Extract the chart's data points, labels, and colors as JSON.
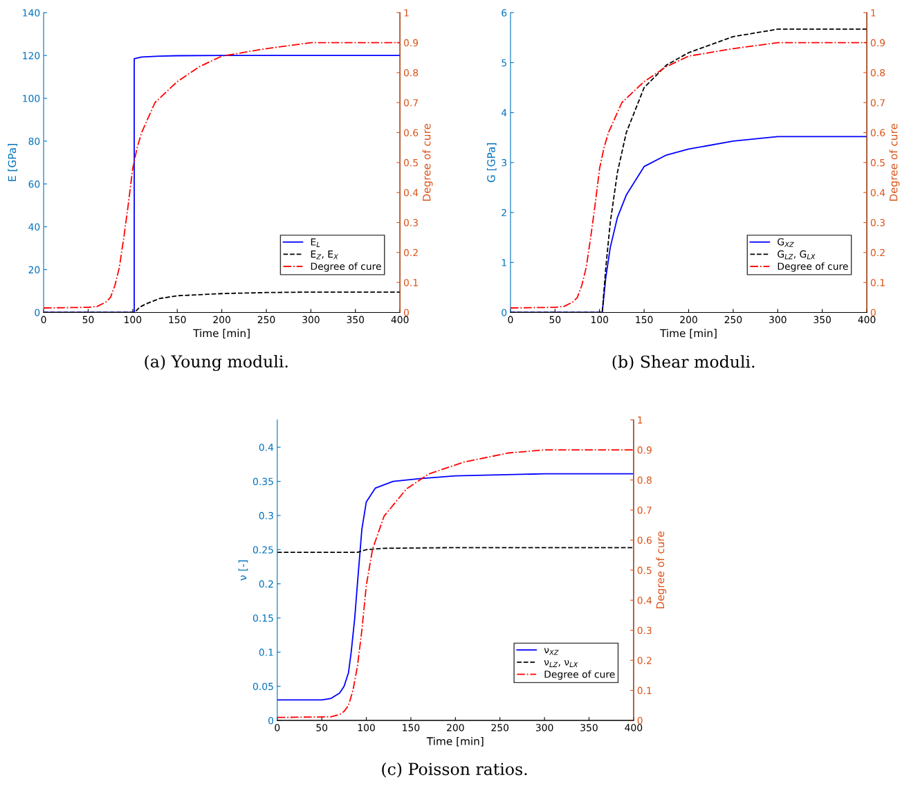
{
  "chart_data": [
    {
      "type": "line",
      "xlabel": "Time [min]",
      "ylabel": "E [GPa]",
      "y2label": "Degree of cure",
      "xlim": [
        0,
        400
      ],
      "xticks": [
        0,
        50,
        100,
        150,
        200,
        250,
        300,
        350,
        400
      ],
      "ylim": [
        0,
        140
      ],
      "yticks": [
        0,
        20,
        40,
        60,
        80,
        100,
        120,
        140
      ],
      "y2lim": [
        0,
        1
      ],
      "y2ticks": [
        0,
        0.1,
        0.2,
        0.3,
        0.4,
        0.5,
        0.6,
        0.7,
        0.8,
        0.9,
        1
      ],
      "legend": "bottom right",
      "grid": false,
      "annotations": [
        "(a) Young moduli."
      ],
      "series": [
        {
          "name": "E$_{L}$",
          "color": "#0000ff",
          "line_style": "solid",
          "x": [
            0,
            101.7,
            101.7,
            110,
            130,
            150,
            200,
            400
          ],
          "values": [
            0,
            0,
            118.5,
            119.3,
            119.7,
            119.9,
            120,
            120
          ]
        },
        {
          "name": "E$_{Z}$, E$_{X}$",
          "color": "#000000",
          "line_style": "dashed",
          "x": [
            0,
            102,
            108,
            115,
            130,
            150,
            200,
            250,
            300,
            400
          ],
          "values": [
            0,
            0,
            2.5,
            4,
            6.5,
            7.8,
            8.8,
            9.3,
            9.5,
            9.5
          ]
        },
        {
          "name": "Degree of cure",
          "color": "#ff0000",
          "line_style": "dashdot",
          "axis": "y2",
          "x": [
            0,
            50,
            60,
            70,
            75,
            80,
            85,
            90,
            95,
            100,
            105,
            110,
            125,
            150,
            175,
            200,
            250,
            300,
            400
          ],
          "values": [
            0.015,
            0.017,
            0.02,
            0.035,
            0.05,
            0.09,
            0.15,
            0.25,
            0.36,
            0.48,
            0.55,
            0.6,
            0.7,
            0.77,
            0.82,
            0.855,
            0.88,
            0.9,
            0.9
          ]
        }
      ]
    },
    {
      "type": "line",
      "xlabel": "Time [min]",
      "ylabel": "G [GPa]",
      "y2label": "Degree of cure",
      "xlim": [
        0,
        400
      ],
      "xticks": [
        0,
        50,
        100,
        150,
        200,
        250,
        300,
        350,
        400
      ],
      "ylim": [
        0,
        6
      ],
      "yticks": [
        0,
        1,
        2,
        3,
        4,
        5,
        6
      ],
      "y2lim": [
        0,
        1
      ],
      "y2ticks": [
        0,
        0.1,
        0.2,
        0.3,
        0.4,
        0.5,
        0.6,
        0.7,
        0.8,
        0.9,
        1
      ],
      "legend": "bottom right",
      "grid": false,
      "annotations": [
        "(b) Shear moduli."
      ],
      "series": [
        {
          "name": "G$_{XZ}$",
          "color": "#0000ff",
          "line_style": "solid",
          "x": [
            0,
            103,
            107,
            112,
            120,
            130,
            150,
            175,
            200,
            250,
            300,
            400
          ],
          "values": [
            0,
            0,
            0.7,
            1.3,
            1.9,
            2.35,
            2.92,
            3.15,
            3.27,
            3.43,
            3.52,
            3.52
          ]
        },
        {
          "name": "G$_{LZ}$, G$_{LX}$",
          "color": "#000000",
          "line_style": "dashed",
          "x": [
            0,
            103,
            107,
            112,
            120,
            130,
            150,
            175,
            200,
            250,
            300,
            400
          ],
          "values": [
            0,
            0,
            0.9,
            1.8,
            2.8,
            3.6,
            4.5,
            4.95,
            5.2,
            5.52,
            5.67,
            5.67
          ]
        },
        {
          "name": "Degree of cure",
          "color": "#ff0000",
          "line_style": "dashdot",
          "axis": "y2",
          "x": [
            0,
            50,
            60,
            70,
            75,
            80,
            85,
            90,
            95,
            100,
            105,
            110,
            125,
            150,
            175,
            200,
            250,
            300,
            400
          ],
          "values": [
            0.015,
            0.017,
            0.02,
            0.035,
            0.05,
            0.09,
            0.15,
            0.25,
            0.36,
            0.48,
            0.55,
            0.6,
            0.7,
            0.77,
            0.82,
            0.855,
            0.88,
            0.9,
            0.9
          ]
        }
      ]
    },
    {
      "type": "line",
      "xlabel": "Time [min]",
      "ylabel": "ν [-]",
      "y2label": "Degree of cure",
      "xlim": [
        0,
        400
      ],
      "xticks": [
        0,
        50,
        100,
        150,
        200,
        250,
        300,
        350,
        400
      ],
      "ylim": [
        0,
        0.44
      ],
      "yticks": [
        0,
        0.05,
        0.1,
        0.15,
        0.2,
        0.25,
        0.3,
        0.35,
        0.4
      ],
      "y2lim": [
        0,
        1
      ],
      "y2ticks": [
        0,
        0.1,
        0.2,
        0.3,
        0.4,
        0.5,
        0.6,
        0.7,
        0.8,
        0.9,
        1
      ],
      "legend": "bottom right",
      "grid": false,
      "annotations": [
        "(c) Poisson ratios."
      ],
      "series": [
        {
          "name": "ν$_{XZ}$",
          "color": "#0000ff",
          "line_style": "solid",
          "x": [
            0,
            50,
            60,
            70,
            75,
            80,
            83,
            87,
            90,
            95,
            100,
            110,
            130,
            160,
            200,
            300,
            400
          ],
          "values": [
            0.03,
            0.03,
            0.032,
            0.04,
            0.05,
            0.07,
            0.1,
            0.15,
            0.2,
            0.28,
            0.32,
            0.34,
            0.35,
            0.354,
            0.358,
            0.361,
            0.361
          ]
        },
        {
          "name": "ν$_{LZ}$, ν$_{LX}$",
          "color": "#000000",
          "line_style": "dashed",
          "x": [
            0,
            90,
            100,
            120,
            200,
            400
          ],
          "values": [
            0.246,
            0.246,
            0.25,
            0.252,
            0.253,
            0.253
          ]
        },
        {
          "name": "Degree of cure",
          "color": "#ff0000",
          "line_style": "dashdot",
          "axis": "y2",
          "x": [
            0,
            60,
            70,
            75,
            80,
            85,
            90,
            95,
            100,
            107,
            120,
            145,
            170,
            210,
            260,
            300,
            400
          ],
          "values": [
            0.01,
            0.012,
            0.02,
            0.03,
            0.05,
            0.1,
            0.18,
            0.3,
            0.45,
            0.57,
            0.68,
            0.77,
            0.82,
            0.86,
            0.89,
            0.9,
            0.9
          ]
        }
      ]
    }
  ]
}
